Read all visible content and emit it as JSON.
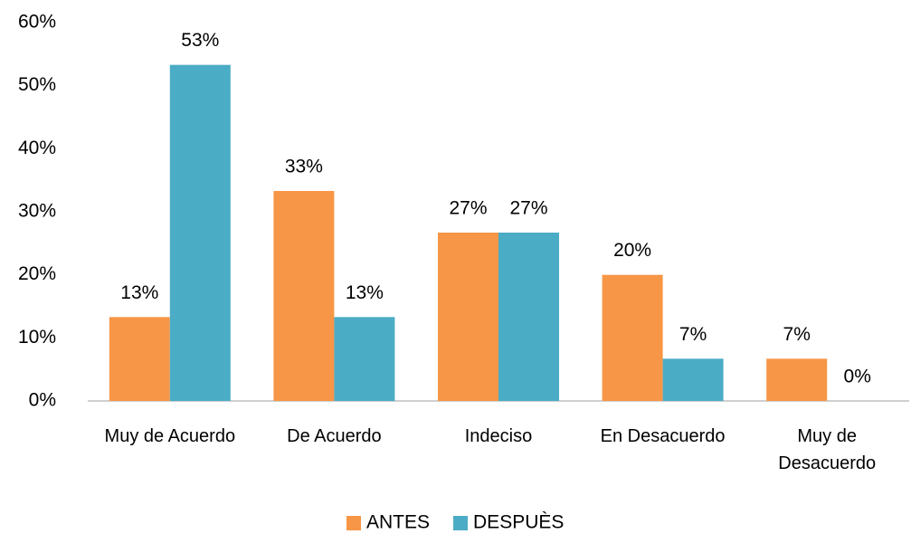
{
  "chart_data": {
    "type": "bar",
    "categories": [
      "Muy de Acuerdo",
      "De Acuerdo",
      "Indeciso",
      "En Desacuerdo",
      "Muy de Desacuerdo"
    ],
    "series": [
      {
        "name": "ANTES",
        "color": "#f79646",
        "values": [
          13.3,
          33.3,
          26.7,
          20,
          6.7
        ],
        "value_labels": [
          "13%",
          "33%",
          "27%",
          "20%",
          "7%"
        ]
      },
      {
        "name": "DESPUÈS",
        "color": "#4bacc6",
        "values": [
          53.3,
          13.3,
          26.7,
          6.7,
          0
        ],
        "value_labels": [
          "53%",
          "13%",
          "27%",
          "7%",
          "0%"
        ]
      }
    ],
    "ylim": [
      0,
      60
    ],
    "yticks": [
      {
        "value": 0,
        "label": "0%"
      },
      {
        "value": 10,
        "label": "10%"
      },
      {
        "value": 20,
        "label": "20%"
      },
      {
        "value": 30,
        "label": "30%"
      },
      {
        "value": 40,
        "label": "40%"
      },
      {
        "value": 50,
        "label": "50%"
      },
      {
        "value": 60,
        "label": "60%"
      }
    ],
    "legend": "bottom"
  }
}
